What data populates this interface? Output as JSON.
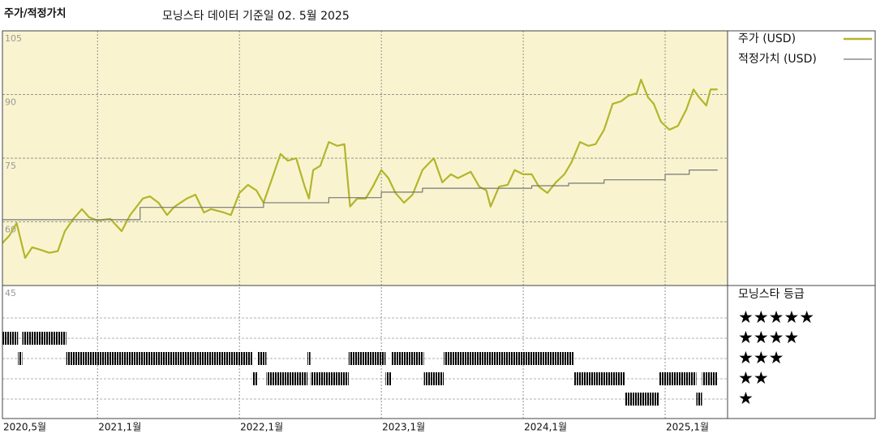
{
  "chart_data": {
    "type": "line",
    "title": "주가/적정가치",
    "subtitle": "모닝스타 데이터 기준일 02. 5월 2025",
    "xlim": [
      2020.33,
      2025.44
    ],
    "xticks": [
      {
        "value": 2020.33,
        "label": "2020,5월"
      },
      {
        "value": 2021,
        "label": "2021,1월"
      },
      {
        "value": 2022,
        "label": "2022,1월"
      },
      {
        "value": 2023,
        "label": "2023,1월"
      },
      {
        "value": 2024,
        "label": "2024,1월"
      },
      {
        "value": 2025,
        "label": "2025,1월"
      }
    ],
    "ylim": [
      45,
      105
    ],
    "yticks": [
      45,
      60,
      75,
      90,
      105
    ],
    "grid": true,
    "legend": "right",
    "series": [
      {
        "name": "주가 (USD)",
        "color": "#b3b52c",
        "x": [
          2020.33,
          2020.38,
          2020.43,
          2020.49,
          2020.54,
          2020.6,
          2020.66,
          2020.72,
          2020.77,
          2020.83,
          2020.89,
          2020.94,
          2021.0,
          2021.09,
          2021.17,
          2021.23,
          2021.32,
          2021.37,
          2021.43,
          2021.49,
          2021.54,
          2021.63,
          2021.69,
          2021.75,
          2021.8,
          2021.89,
          2021.94,
          2022.0,
          2022.06,
          2022.12,
          2022.17,
          2022.23,
          2022.29,
          2022.34,
          2022.4,
          2022.46,
          2022.49,
          2022.52,
          2022.57,
          2022.63,
          2022.69,
          2022.74,
          2022.78,
          2022.83,
          2022.89,
          2022.94,
          2023.0,
          2023.05,
          2023.1,
          2023.16,
          2023.22,
          2023.29,
          2023.37,
          2023.43,
          2023.49,
          2023.54,
          2023.63,
          2023.69,
          2023.74,
          2023.77,
          2023.83,
          2023.89,
          2023.94,
          2024.0,
          2024.06,
          2024.11,
          2024.17,
          2024.23,
          2024.29,
          2024.34,
          2024.4,
          2024.46,
          2024.51,
          2024.57,
          2024.63,
          2024.69,
          2024.74,
          2024.8,
          2024.83,
          2024.88,
          2024.92,
          2024.97,
          2025.03,
          2025.09,
          2025.15,
          2025.2,
          2025.24,
          2025.29,
          2025.32,
          2025.37
        ],
        "values": [
          55.0,
          56.8,
          59.7,
          51.5,
          54.0,
          53.4,
          52.7,
          53.1,
          57.8,
          60.7,
          63.0,
          61.1,
          60.3,
          60.7,
          57.8,
          61.6,
          65.5,
          66.0,
          64.5,
          61.6,
          63.5,
          65.5,
          66.4,
          62.2,
          63.0,
          62.2,
          61.6,
          66.8,
          68.7,
          67.4,
          64.5,
          70.2,
          76.0,
          74.4,
          75.0,
          68.3,
          65.5,
          72.2,
          73.2,
          78.8,
          77.9,
          78.3,
          63.6,
          65.5,
          65.5,
          68.3,
          72.2,
          70.3,
          66.8,
          64.5,
          66.4,
          72.2,
          75.0,
          69.3,
          71.2,
          70.3,
          71.8,
          68.3,
          67.4,
          63.6,
          68.3,
          68.7,
          72.2,
          71.2,
          71.2,
          68.3,
          66.8,
          69.3,
          71.2,
          74.0,
          78.8,
          77.9,
          78.3,
          81.7,
          87.8,
          88.4,
          89.7,
          90.3,
          93.5,
          89.3,
          87.8,
          83.6,
          81.7,
          82.6,
          86.5,
          91.2,
          89.3,
          87.4,
          91.2,
          91.2
        ]
      },
      {
        "name": "적정가치 (USD)",
        "color": "#777777",
        "step": true,
        "x": [
          2020.33,
          2021.3,
          2022.17,
          2022.63,
          2023.0,
          2023.29,
          2024.06,
          2024.32,
          2024.57,
          2025.0,
          2025.17,
          2025.37
        ],
        "values": [
          60.5,
          63.4,
          64.5,
          65.7,
          67.0,
          67.9,
          68.5,
          69.1,
          69.9,
          71.2,
          72.2,
          72.2
        ]
      }
    ],
    "rating_title": "모닝스타 등급",
    "rating_levels": [
      5,
      4,
      3,
      2,
      1
    ],
    "rating_labels": [
      "★★★★★",
      "★★★★",
      "★★★",
      "★★",
      "★"
    ],
    "ratings": [
      {
        "start": 2020.33,
        "end": 2020.44,
        "rating": 4
      },
      {
        "start": 2020.44,
        "end": 2020.47,
        "rating": 3
      },
      {
        "start": 2020.47,
        "end": 2020.78,
        "rating": 4
      },
      {
        "start": 2020.78,
        "end": 2022.09,
        "rating": 3
      },
      {
        "start": 2022.09,
        "end": 2022.13,
        "rating": 2
      },
      {
        "start": 2022.13,
        "end": 2022.19,
        "rating": 3
      },
      {
        "start": 2022.19,
        "end": 2022.48,
        "rating": 2
      },
      {
        "start": 2022.48,
        "end": 2022.5,
        "rating": 3
      },
      {
        "start": 2022.5,
        "end": 2022.77,
        "rating": 2
      },
      {
        "start": 2022.77,
        "end": 2023.03,
        "rating": 3
      },
      {
        "start": 2023.03,
        "end": 2023.07,
        "rating": 2
      },
      {
        "start": 2023.07,
        "end": 2023.3,
        "rating": 3
      },
      {
        "start": 2023.3,
        "end": 2023.44,
        "rating": 2
      },
      {
        "start": 2023.44,
        "end": 2024.36,
        "rating": 3
      },
      {
        "start": 2024.36,
        "end": 2024.72,
        "rating": 2
      },
      {
        "start": 2024.72,
        "end": 2024.96,
        "rating": 1
      },
      {
        "start": 2024.96,
        "end": 2025.22,
        "rating": 2
      },
      {
        "start": 2025.22,
        "end": 2025.26,
        "rating": 1
      },
      {
        "start": 2025.26,
        "end": 2025.37,
        "rating": 2
      }
    ]
  }
}
